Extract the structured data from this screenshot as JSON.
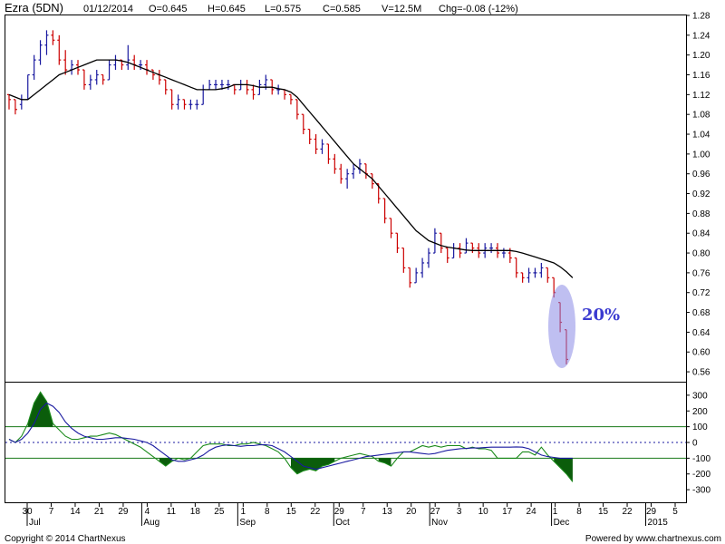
{
  "header": {
    "symbol": "Ezra (5DN)",
    "date": "01/12/2014",
    "open": "O=0.645",
    "high": "H=0.645",
    "low": "L=0.575",
    "close": "C=0.585",
    "volume": "V=12.5M",
    "change": "Chg=-0.08 (-12%)"
  },
  "annotation": {
    "label": "20%"
  },
  "footer": {
    "copyright": "Copyright © 2014 ChartNexus",
    "powered": "Powered by www.chartnexus.com"
  },
  "colors": {
    "up": "#1a1aa0",
    "down": "#cc0000",
    "ma": "#000000",
    "osc_fast": "#1a1aa0",
    "osc_slow": "#1a8a1a",
    "fill": "#0b5d0b",
    "bandline": "#1a7a1a",
    "ellipse": "#8a8ae6",
    "annotation": "#3a3ad0"
  },
  "chart_data": [
    {
      "type": "ohlc",
      "ylim": [
        0.54,
        1.28
      ],
      "yticks": [
        "1.28",
        "1.24",
        "1.20",
        "1.16",
        "1.12",
        "1.08",
        "1.04",
        "1.00",
        "0.96",
        "0.92",
        "0.88",
        "0.84",
        "0.80",
        "0.76",
        "0.72",
        "0.68",
        "0.64",
        "0.60",
        "0.56"
      ],
      "x_day_ticks": [
        "30",
        "7",
        "14",
        "21",
        "29",
        "4",
        "11",
        "18",
        "25",
        "1",
        "8",
        "15",
        "22",
        "29",
        "7",
        "13",
        "20",
        "27",
        "3",
        "10",
        "17",
        "24",
        "1",
        "8",
        "15",
        "22",
        "29",
        "5"
      ],
      "x_month_labels": [
        {
          "label": "Jul",
          "after_day": "30"
        },
        {
          "label": "Aug",
          "after_day": "4"
        },
        {
          "label": "Sep",
          "after_day": "1"
        },
        {
          "label": "Oct",
          "after_day": "29"
        },
        {
          "label": "Nov",
          "after_day": "27"
        },
        {
          "label": "Dec",
          "after_day": "1"
        },
        {
          "label": "2015",
          "after_day": "29"
        }
      ],
      "series": [
        {
          "kind": "ohlc",
          "values": [
            [
              1.12,
              1.12,
              1.09,
              1.11
            ],
            [
              1.11,
              1.11,
              1.08,
              1.09
            ],
            [
              1.1,
              1.12,
              1.09,
              1.11
            ],
            [
              1.11,
              1.16,
              1.11,
              1.16
            ],
            [
              1.16,
              1.2,
              1.15,
              1.19
            ],
            [
              1.19,
              1.23,
              1.18,
              1.22
            ],
            [
              1.22,
              1.25,
              1.2,
              1.24
            ],
            [
              1.24,
              1.25,
              1.22,
              1.23
            ],
            [
              1.23,
              1.24,
              1.18,
              1.19
            ],
            [
              1.19,
              1.21,
              1.16,
              1.17
            ],
            [
              1.17,
              1.19,
              1.16,
              1.18
            ],
            [
              1.18,
              1.19,
              1.16,
              1.17
            ],
            [
              1.17,
              1.17,
              1.13,
              1.14
            ],
            [
              1.14,
              1.16,
              1.13,
              1.15
            ],
            [
              1.15,
              1.17,
              1.14,
              1.16
            ],
            [
              1.16,
              1.16,
              1.14,
              1.15
            ],
            [
              1.15,
              1.19,
              1.15,
              1.18
            ],
            [
              1.18,
              1.2,
              1.17,
              1.19
            ],
            [
              1.19,
              1.19,
              1.17,
              1.18
            ],
            [
              1.18,
              1.22,
              1.17,
              1.19
            ],
            [
              1.19,
              1.2,
              1.17,
              1.18
            ],
            [
              1.18,
              1.19,
              1.17,
              1.18
            ],
            [
              1.18,
              1.19,
              1.16,
              1.17
            ],
            [
              1.17,
              1.17,
              1.15,
              1.16
            ],
            [
              1.16,
              1.17,
              1.14,
              1.15
            ],
            [
              1.15,
              1.15,
              1.12,
              1.13
            ],
            [
              1.13,
              1.13,
              1.09,
              1.1
            ],
            [
              1.1,
              1.12,
              1.09,
              1.11
            ],
            [
              1.11,
              1.11,
              1.09,
              1.1
            ],
            [
              1.1,
              1.11,
              1.09,
              1.1
            ],
            [
              1.1,
              1.11,
              1.09,
              1.1
            ],
            [
              1.1,
              1.14,
              1.1,
              1.13
            ],
            [
              1.13,
              1.15,
              1.13,
              1.14
            ],
            [
              1.14,
              1.15,
              1.13,
              1.14
            ],
            [
              1.14,
              1.15,
              1.13,
              1.14
            ],
            [
              1.14,
              1.15,
              1.13,
              1.14
            ],
            [
              1.14,
              1.14,
              1.12,
              1.13
            ],
            [
              1.13,
              1.15,
              1.13,
              1.14
            ],
            [
              1.14,
              1.15,
              1.12,
              1.13
            ],
            [
              1.13,
              1.14,
              1.11,
              1.12
            ],
            [
              1.12,
              1.15,
              1.12,
              1.14
            ],
            [
              1.14,
              1.16,
              1.13,
              1.15
            ],
            [
              1.15,
              1.15,
              1.12,
              1.13
            ],
            [
              1.13,
              1.14,
              1.12,
              1.13
            ],
            [
              1.13,
              1.13,
              1.11,
              1.12
            ],
            [
              1.12,
              1.12,
              1.1,
              1.11
            ],
            [
              1.11,
              1.11,
              1.07,
              1.08
            ],
            [
              1.08,
              1.08,
              1.04,
              1.05
            ],
            [
              1.05,
              1.05,
              1.02,
              1.03
            ],
            [
              1.03,
              1.04,
              1.0,
              1.01
            ],
            [
              1.01,
              1.03,
              1.0,
              1.02
            ],
            [
              1.02,
              1.02,
              0.98,
              0.99
            ],
            [
              0.99,
              1.0,
              0.96,
              0.97
            ],
            [
              0.97,
              0.98,
              0.94,
              0.95
            ],
            [
              0.95,
              0.97,
              0.93,
              0.96
            ],
            [
              0.96,
              0.98,
              0.95,
              0.97
            ],
            [
              0.97,
              0.99,
              0.96,
              0.98
            ],
            [
              0.98,
              0.98,
              0.95,
              0.96
            ],
            [
              0.96,
              0.96,
              0.93,
              0.94
            ],
            [
              0.94,
              0.94,
              0.9,
              0.91
            ],
            [
              0.91,
              0.91,
              0.86,
              0.87
            ],
            [
              0.87,
              0.87,
              0.83,
              0.84
            ],
            [
              0.84,
              0.84,
              0.8,
              0.81
            ],
            [
              0.81,
              0.81,
              0.76,
              0.77
            ],
            [
              0.77,
              0.77,
              0.73,
              0.74
            ],
            [
              0.74,
              0.77,
              0.74,
              0.76
            ],
            [
              0.76,
              0.79,
              0.75,
              0.78
            ],
            [
              0.78,
              0.81,
              0.77,
              0.8
            ],
            [
              0.8,
              0.85,
              0.8,
              0.84
            ],
            [
              0.84,
              0.84,
              0.8,
              0.81
            ],
            [
              0.81,
              0.81,
              0.78,
              0.79
            ],
            [
              0.79,
              0.82,
              0.79,
              0.81
            ],
            [
              0.81,
              0.82,
              0.79,
              0.8
            ],
            [
              0.8,
              0.83,
              0.8,
              0.82
            ],
            [
              0.82,
              0.82,
              0.8,
              0.81
            ],
            [
              0.81,
              0.82,
              0.79,
              0.8
            ],
            [
              0.8,
              0.82,
              0.79,
              0.81
            ],
            [
              0.81,
              0.82,
              0.8,
              0.81
            ],
            [
              0.81,
              0.82,
              0.79,
              0.8
            ],
            [
              0.8,
              0.81,
              0.79,
              0.8
            ],
            [
              0.8,
              0.81,
              0.78,
              0.79
            ],
            [
              0.79,
              0.79,
              0.75,
              0.76
            ],
            [
              0.76,
              0.76,
              0.74,
              0.75
            ],
            [
              0.75,
              0.77,
              0.74,
              0.76
            ],
            [
              0.76,
              0.77,
              0.75,
              0.76
            ],
            [
              0.76,
              0.78,
              0.75,
              0.77
            ],
            [
              0.77,
              0.77,
              0.74,
              0.75
            ],
            [
              0.75,
              0.75,
              0.71,
              0.72
            ],
            [
              0.7,
              0.7,
              0.64,
              0.66
            ],
            [
              0.645,
              0.645,
              0.575,
              0.585
            ]
          ]
        },
        {
          "kind": "line",
          "values": [
            1.12,
            1.115,
            1.11,
            1.11,
            1.12,
            1.13,
            1.14,
            1.15,
            1.16,
            1.165,
            1.17,
            1.175,
            1.18,
            1.185,
            1.19,
            1.19,
            1.19,
            1.19,
            1.188,
            1.185,
            1.18,
            1.175,
            1.17,
            1.165,
            1.16,
            1.155,
            1.15,
            1.145,
            1.14,
            1.135,
            1.13,
            1.13,
            1.13,
            1.13,
            1.132,
            1.135,
            1.14,
            1.14,
            1.14,
            1.138,
            1.135,
            1.135,
            1.135,
            1.132,
            1.13,
            1.125,
            1.115,
            1.1,
            1.085,
            1.07,
            1.055,
            1.04,
            1.025,
            1.01,
            0.995,
            0.98,
            0.97,
            0.96,
            0.95,
            0.935,
            0.92,
            0.905,
            0.89,
            0.875,
            0.86,
            0.845,
            0.835,
            0.825,
            0.82,
            0.815,
            0.812,
            0.81,
            0.808,
            0.806,
            0.805,
            0.805,
            0.805,
            0.805,
            0.805,
            0.805,
            0.805,
            0.803,
            0.8,
            0.796,
            0.792,
            0.788,
            0.784,
            0.78,
            0.772,
            0.762,
            0.75
          ]
        }
      ]
    },
    {
      "type": "line",
      "ylim": [
        -380,
        380
      ],
      "yticks": [
        "300",
        "200",
        "100",
        "0",
        "-100",
        "-200",
        "-300"
      ],
      "bands": [
        100,
        0,
        -100
      ],
      "series": [
        {
          "kind": "fast",
          "values": [
            20,
            0,
            20,
            60,
            120,
            210,
            250,
            230,
            190,
            130,
            90,
            60,
            40,
            30,
            20,
            20,
            25,
            30,
            30,
            25,
            20,
            10,
            0,
            -20,
            -50,
            -80,
            -110,
            -120,
            -120,
            -110,
            -100,
            -80,
            -50,
            -30,
            -20,
            -15,
            -20,
            -25,
            -20,
            -20,
            -15,
            -15,
            -20,
            -40,
            -60,
            -90,
            -120,
            -150,
            -160,
            -170,
            -160,
            -150,
            -140,
            -130,
            -120,
            -110,
            -100,
            -90,
            -85,
            -80,
            -75,
            -70,
            -65,
            -60,
            -60,
            -65,
            -70,
            -75,
            -70,
            -60,
            -50,
            -45,
            -40,
            -38,
            -35,
            -35,
            -32,
            -30,
            -30,
            -30,
            -30,
            -28,
            -30,
            -40,
            -60,
            -80,
            -90,
            -95,
            -100,
            -100,
            -100
          ]
        },
        {
          "kind": "slow",
          "values": [
            20,
            0,
            40,
            120,
            250,
            320,
            260,
            120,
            80,
            40,
            20,
            20,
            30,
            40,
            40,
            50,
            60,
            50,
            30,
            10,
            -10,
            -30,
            -60,
            -90,
            -120,
            -150,
            -120,
            -100,
            -110,
            -100,
            -60,
            -20,
            -10,
            -10,
            -10,
            -20,
            -20,
            -10,
            -10,
            0,
            -10,
            -20,
            -40,
            -60,
            -100,
            -160,
            -200,
            -180,
            -170,
            -180,
            -150,
            -140,
            -120,
            -100,
            -90,
            -80,
            -70,
            -80,
            -90,
            -120,
            -130,
            -150,
            -100,
            -60,
            -60,
            -40,
            -20,
            -30,
            -20,
            -30,
            -20,
            -20,
            -20,
            -40,
            -30,
            -40,
            -40,
            -50,
            -100,
            -100,
            -100,
            -100,
            -60,
            -60,
            -80,
            -30,
            -80,
            -120,
            -160,
            -200,
            -250
          ]
        }
      ]
    }
  ]
}
